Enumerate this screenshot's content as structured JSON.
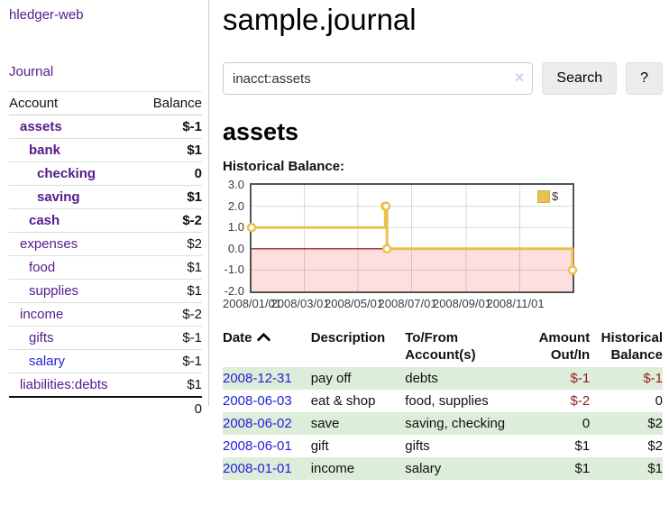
{
  "app": {
    "brand": "hledger-web",
    "journal_link": "Journal"
  },
  "colors": {
    "link_purple": "#551a8b",
    "link_blue": "#2222dd",
    "negative_strong": "#8e1313",
    "negative_muted": "#c06a6a",
    "register_negative": "#94221f",
    "stripe_green": "#dcedd9",
    "chart_line_gold": "#e9c24d",
    "chart_negative_fill": "#ffdede",
    "chart_zero_line": "#8b0000"
  },
  "sidebar": {
    "header": {
      "account": "Account",
      "balance": "Balance"
    },
    "accounts": [
      {
        "name": "assets",
        "balance": "$-1",
        "depth": 1,
        "matched": true,
        "link_color": "purple",
        "tone": "neg"
      },
      {
        "name": "bank",
        "balance": "$1",
        "depth": 2,
        "matched": true,
        "link_color": "purple",
        "tone": "black"
      },
      {
        "name": "checking",
        "balance": "0",
        "depth": 3,
        "matched": true,
        "link_color": "purple",
        "tone": "black"
      },
      {
        "name": "saving",
        "balance": "$1",
        "depth": 3,
        "matched": true,
        "link_color": "purple",
        "tone": "black"
      },
      {
        "name": "cash",
        "balance": "$-2",
        "depth": 2,
        "matched": true,
        "link_color": "purple",
        "tone": "neg"
      },
      {
        "name": "expenses",
        "balance": "$2",
        "depth": 1,
        "matched": false,
        "link_color": "purple",
        "tone": "black"
      },
      {
        "name": "food",
        "balance": "$1",
        "depth": 2,
        "matched": false,
        "link_color": "purple",
        "tone": "black"
      },
      {
        "name": "supplies",
        "balance": "$1",
        "depth": 2,
        "matched": false,
        "link_color": "purple",
        "tone": "black"
      },
      {
        "name": "income",
        "balance": "$-2",
        "depth": 1,
        "matched": false,
        "link_color": "purple",
        "tone": "muted"
      },
      {
        "name": "gifts",
        "balance": "$-1",
        "depth": 2,
        "matched": false,
        "link_color": "purple",
        "tone": "muted"
      },
      {
        "name": "salary",
        "balance": "$-1",
        "depth": 2,
        "matched": false,
        "link_color": "blue",
        "tone": "muted"
      },
      {
        "name": "liabilities:debts",
        "balance": "$1",
        "depth": 1,
        "matched": false,
        "link_color": "purple",
        "tone": "black"
      }
    ],
    "total": "0"
  },
  "main": {
    "title": "sample.journal",
    "search": {
      "value": "inacct:assets",
      "clear_icon": "×",
      "button_label": "Search",
      "help_label": "?"
    },
    "account_heading": "assets",
    "chart_label": "Historical Balance:"
  },
  "chart_data": {
    "type": "line",
    "step": true,
    "title": "Historical Balance",
    "series": [
      {
        "name": "$",
        "color": "#e9c24d",
        "points": [
          [
            "2008-01-01",
            1
          ],
          [
            "2008-06-01",
            2
          ],
          [
            "2008-06-02",
            2
          ],
          [
            "2008-06-03",
            0
          ],
          [
            "2008-12-31",
            -1
          ]
        ]
      }
    ],
    "xrange": [
      "2008-01-01",
      "2008-12-31"
    ],
    "ylim": [
      -2,
      3
    ],
    "yticks": [
      {
        "v": 3,
        "label": "3.0"
      },
      {
        "v": 2,
        "label": "2.0"
      },
      {
        "v": 1,
        "label": "1.0"
      },
      {
        "v": 0,
        "label": "0.0"
      },
      {
        "v": -1,
        "label": "-1.0"
      },
      {
        "v": -2,
        "label": "-2.0"
      }
    ],
    "xticks": [
      {
        "date": "2008-01-01",
        "label": "2008/01/01"
      },
      {
        "date": "2008-03-01",
        "label": "2008/03/01"
      },
      {
        "date": "2008-05-01",
        "label": "2008/05/01"
      },
      {
        "date": "2008-07-01",
        "label": "2008/07/01"
      },
      {
        "date": "2008-09-01",
        "label": "2008/09/01"
      },
      {
        "date": "2008-11-01",
        "label": "2008/11/01"
      }
    ],
    "grid": true,
    "legend": {
      "position": "top-right",
      "label": "$"
    }
  },
  "register": {
    "headers": [
      {
        "label": "Date",
        "sort_ascending": true,
        "align": "left"
      },
      {
        "label": "Description",
        "align": "left"
      },
      {
        "label": "To/From\nAccount(s)",
        "align": "left"
      },
      {
        "label": "Amount\nOut/In",
        "align": "right"
      },
      {
        "label": "Historical\nBalance",
        "align": "right"
      }
    ],
    "rows": [
      {
        "date": "2008-12-31",
        "description": "pay off",
        "accounts": "debts",
        "amount": "$-1",
        "balance": "$-1"
      },
      {
        "date": "2008-06-03",
        "description": "eat & shop",
        "accounts": "food, supplies",
        "amount": "$-2",
        "balance": "0"
      },
      {
        "date": "2008-06-02",
        "description": "save",
        "accounts": "saving, checking",
        "amount": "0",
        "balance": "$2"
      },
      {
        "date": "2008-06-01",
        "description": "gift",
        "accounts": "gifts",
        "amount": "$1",
        "balance": "$2"
      },
      {
        "date": "2008-01-01",
        "description": "income",
        "accounts": "salary",
        "amount": "$1",
        "balance": "$1"
      }
    ]
  }
}
